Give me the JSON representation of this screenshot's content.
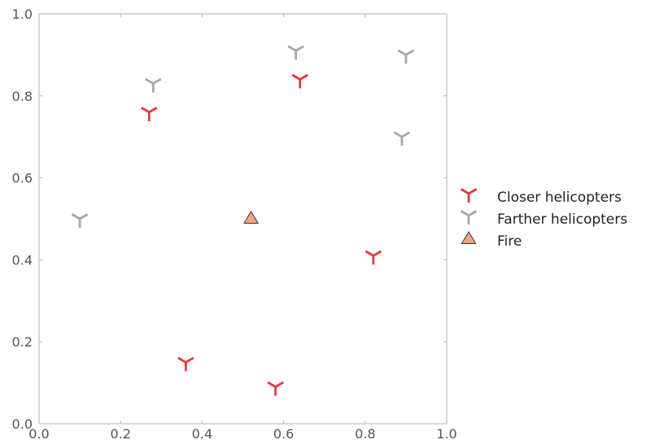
{
  "chart_data": {
    "type": "scatter",
    "xlim": [
      0.0,
      1.0
    ],
    "ylim": [
      0.0,
      1.0
    ],
    "xticks": [
      "0.0",
      "0.2",
      "0.4",
      "0.6",
      "0.8",
      "1.0"
    ],
    "yticks": [
      "0.0",
      "0.2",
      "0.4",
      "0.6",
      "0.8",
      "1.0"
    ],
    "grid": false,
    "legend_position": "right",
    "series": [
      {
        "name": "Closer helicopters",
        "marker": "tri-down",
        "color": "#e0393e",
        "points": [
          {
            "x": 0.27,
            "y": 0.76
          },
          {
            "x": 0.64,
            "y": 0.84
          },
          {
            "x": 0.82,
            "y": 0.41
          },
          {
            "x": 0.36,
            "y": 0.15
          },
          {
            "x": 0.58,
            "y": 0.09
          }
        ]
      },
      {
        "name": "Farther helicopters",
        "marker": "tri-down",
        "color": "#a6a6a6",
        "points": [
          {
            "x": 0.28,
            "y": 0.83
          },
          {
            "x": 0.63,
            "y": 0.91
          },
          {
            "x": 0.9,
            "y": 0.9
          },
          {
            "x": 0.89,
            "y": 0.7
          },
          {
            "x": 0.1,
            "y": 0.5
          }
        ]
      },
      {
        "name": "Fire",
        "marker": "triangle",
        "color": "#f4a582",
        "edge_color": "#333333",
        "points": [
          {
            "x": 0.52,
            "y": 0.5
          }
        ]
      }
    ]
  }
}
